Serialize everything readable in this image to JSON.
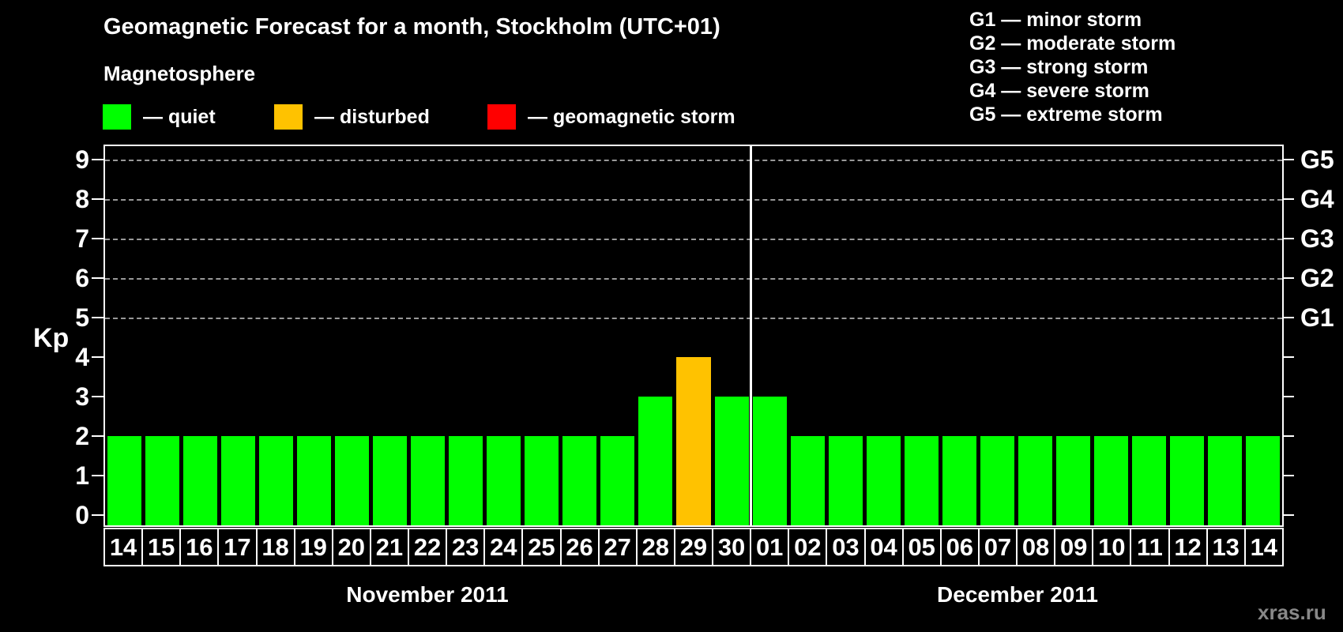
{
  "title": "Geomagnetic Forecast for a month, Stockholm (UTC+01)",
  "subtitle": "Magnetosphere",
  "magnetosphere_legend": [
    {
      "name": "quiet",
      "label": "— quiet",
      "color": "#00ff00"
    },
    {
      "name": "disturbed",
      "label": "— disturbed",
      "color": "#ffc200"
    },
    {
      "name": "storm",
      "label": "— geomagnetic storm",
      "color": "#ff0000"
    }
  ],
  "storm_scale_legend": [
    "G1 — minor storm",
    "G2 — moderate storm",
    "G3 — strong storm",
    "G4 — severe storm",
    "G5 — extreme storm"
  ],
  "watermark": "xras.ru",
  "chart_data": {
    "type": "bar",
    "title": "Geomagnetic Forecast for a month, Stockholm (UTC+01)",
    "ylabel": "Kp",
    "ylim": [
      0,
      9
    ],
    "yticks": [
      0,
      1,
      2,
      3,
      4,
      5,
      6,
      7,
      8,
      9
    ],
    "grid_levels": [
      5,
      6,
      7,
      8,
      9
    ],
    "grid_style": "dashed",
    "right_axis_labels": [
      {
        "label": "G1",
        "kp": 5
      },
      {
        "label": "G2",
        "kp": 6
      },
      {
        "label": "G3",
        "kp": 7
      },
      {
        "label": "G4",
        "kp": 8
      },
      {
        "label": "G5",
        "kp": 9
      }
    ],
    "status_colors": {
      "quiet": "#00ff00",
      "disturbed": "#ffc200",
      "storm": "#ff0000"
    },
    "months": [
      {
        "label": "November 2011",
        "days": [
          "14",
          "15",
          "16",
          "17",
          "18",
          "19",
          "20",
          "21",
          "22",
          "23",
          "24",
          "25",
          "26",
          "27",
          "28",
          "29",
          "30"
        ],
        "values": [
          2,
          2,
          2,
          2,
          2,
          2,
          2,
          2,
          2,
          2,
          2,
          2,
          2,
          2,
          3,
          4,
          3
        ],
        "statuses": [
          "quiet",
          "quiet",
          "quiet",
          "quiet",
          "quiet",
          "quiet",
          "quiet",
          "quiet",
          "quiet",
          "quiet",
          "quiet",
          "quiet",
          "quiet",
          "quiet",
          "quiet",
          "disturbed",
          "quiet"
        ]
      },
      {
        "label": "December 2011",
        "days": [
          "01",
          "02",
          "03",
          "04",
          "05",
          "06",
          "07",
          "08",
          "09",
          "10",
          "11",
          "12",
          "13",
          "14"
        ],
        "values": [
          3,
          2,
          2,
          2,
          2,
          2,
          2,
          2,
          2,
          2,
          2,
          2,
          2,
          2
        ],
        "statuses": [
          "quiet",
          "quiet",
          "quiet",
          "quiet",
          "quiet",
          "quiet",
          "quiet",
          "quiet",
          "quiet",
          "quiet",
          "quiet",
          "quiet",
          "quiet",
          "quiet"
        ]
      }
    ]
  }
}
